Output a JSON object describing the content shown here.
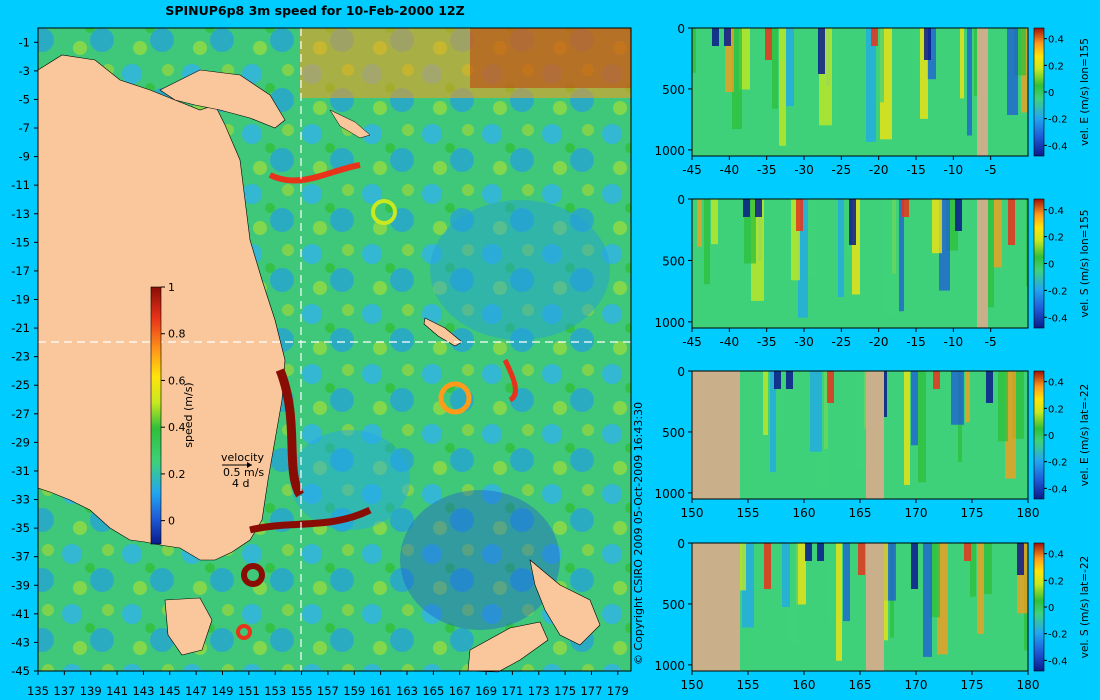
{
  "title": "SPINUP6p8 3m speed for 10-Feb-2000 12Z",
  "copyright": "© Copyright CSIRO 2009   05-Oct-2009 16:43:30",
  "colors": {
    "background": "#00ccff",
    "land": "#f9c79b",
    "section_land": "#c9b08a",
    "colormap": [
      "#0a1a8c",
      "#1e5bd8",
      "#22a7f0",
      "#3fd17a",
      "#2fbf3a",
      "#c8e81f",
      "#ffe40a",
      "#ff9a1a",
      "#e8321a",
      "#8a0d05"
    ]
  },
  "chart_data": [
    {
      "type": "heatmap",
      "title": "SPINUP6p8 3m speed for 10-Feb-2000 12Z",
      "xlabel": "",
      "ylabel": "",
      "xlim": [
        135,
        180
      ],
      "ylim": [
        -45,
        0
      ],
      "x_ticks": [
        "135",
        "137",
        "139",
        "141",
        "143",
        "145",
        "147",
        "149",
        "151",
        "153",
        "155",
        "157",
        "159",
        "161",
        "163",
        "165",
        "167",
        "169",
        "171",
        "173",
        "175",
        "177",
        "179"
      ],
      "y_ticks": [
        "-1",
        "-3",
        "-5",
        "-7",
        "-9",
        "-11",
        "-13",
        "-15",
        "-17",
        "-19",
        "-21",
        "-23",
        "-25",
        "-27",
        "-29",
        "-31",
        "-33",
        "-35",
        "-37",
        "-39",
        "-41",
        "-43",
        "-45"
      ],
      "reference_lines": {
        "lon": 155,
        "lat": -22
      },
      "colorbar": {
        "label": "speed (m/s)",
        "range": [
          -0.1,
          1
        ],
        "ticks": [
          "1",
          "0.8",
          "0.6",
          "0.4",
          "0.2",
          "0"
        ]
      },
      "velocity_key": {
        "label": "velocity",
        "speed": "0.5 m/s",
        "duration": "4 d"
      }
    },
    {
      "type": "heatmap",
      "xlim": [
        -45,
        0
      ],
      "ylim": [
        1050,
        0
      ],
      "x_ticks": [
        "-45",
        "-40",
        "-35",
        "-30",
        "-25",
        "-20",
        "-15",
        "-10",
        "-5"
      ],
      "y_ticks": [
        "0",
        "500",
        "1000"
      ],
      "colorbar": {
        "label": "vel. E (m/s) lon=155",
        "ticks": [
          "0.4",
          "0.2",
          "0",
          "-0.2",
          "-0.4"
        ]
      }
    },
    {
      "type": "heatmap",
      "xlim": [
        -45,
        0
      ],
      "ylim": [
        1050,
        0
      ],
      "x_ticks": [
        "-45",
        "-40",
        "-35",
        "-30",
        "-25",
        "-20",
        "-15",
        "-10",
        "-5"
      ],
      "y_ticks": [
        "0",
        "500",
        "1000"
      ],
      "colorbar": {
        "label": "vel. S (m/s) lon=155",
        "ticks": [
          "0.4",
          "0.2",
          "0",
          "-0.2",
          "-0.4"
        ]
      }
    },
    {
      "type": "heatmap",
      "xlim": [
        150,
        180
      ],
      "ylim": [
        1050,
        0
      ],
      "x_ticks": [
        "150",
        "155",
        "160",
        "165",
        "170",
        "175",
        "180"
      ],
      "y_ticks": [
        "0",
        "500",
        "1000"
      ],
      "colorbar": {
        "label": "vel. E (m/s) lat=-22",
        "ticks": [
          "0.4",
          "0.2",
          "0",
          "-0.2",
          "-0.4"
        ]
      }
    },
    {
      "type": "heatmap",
      "xlim": [
        150,
        180
      ],
      "ylim": [
        1050,
        0
      ],
      "x_ticks": [
        "150",
        "155",
        "160",
        "165",
        "170",
        "175",
        "180"
      ],
      "y_ticks": [
        "0",
        "500",
        "1000"
      ],
      "colorbar": {
        "label": "vel. S (m/s) lat=-22",
        "ticks": [
          "0.4",
          "0.2",
          "0",
          "-0.2",
          "-0.4"
        ]
      }
    }
  ]
}
